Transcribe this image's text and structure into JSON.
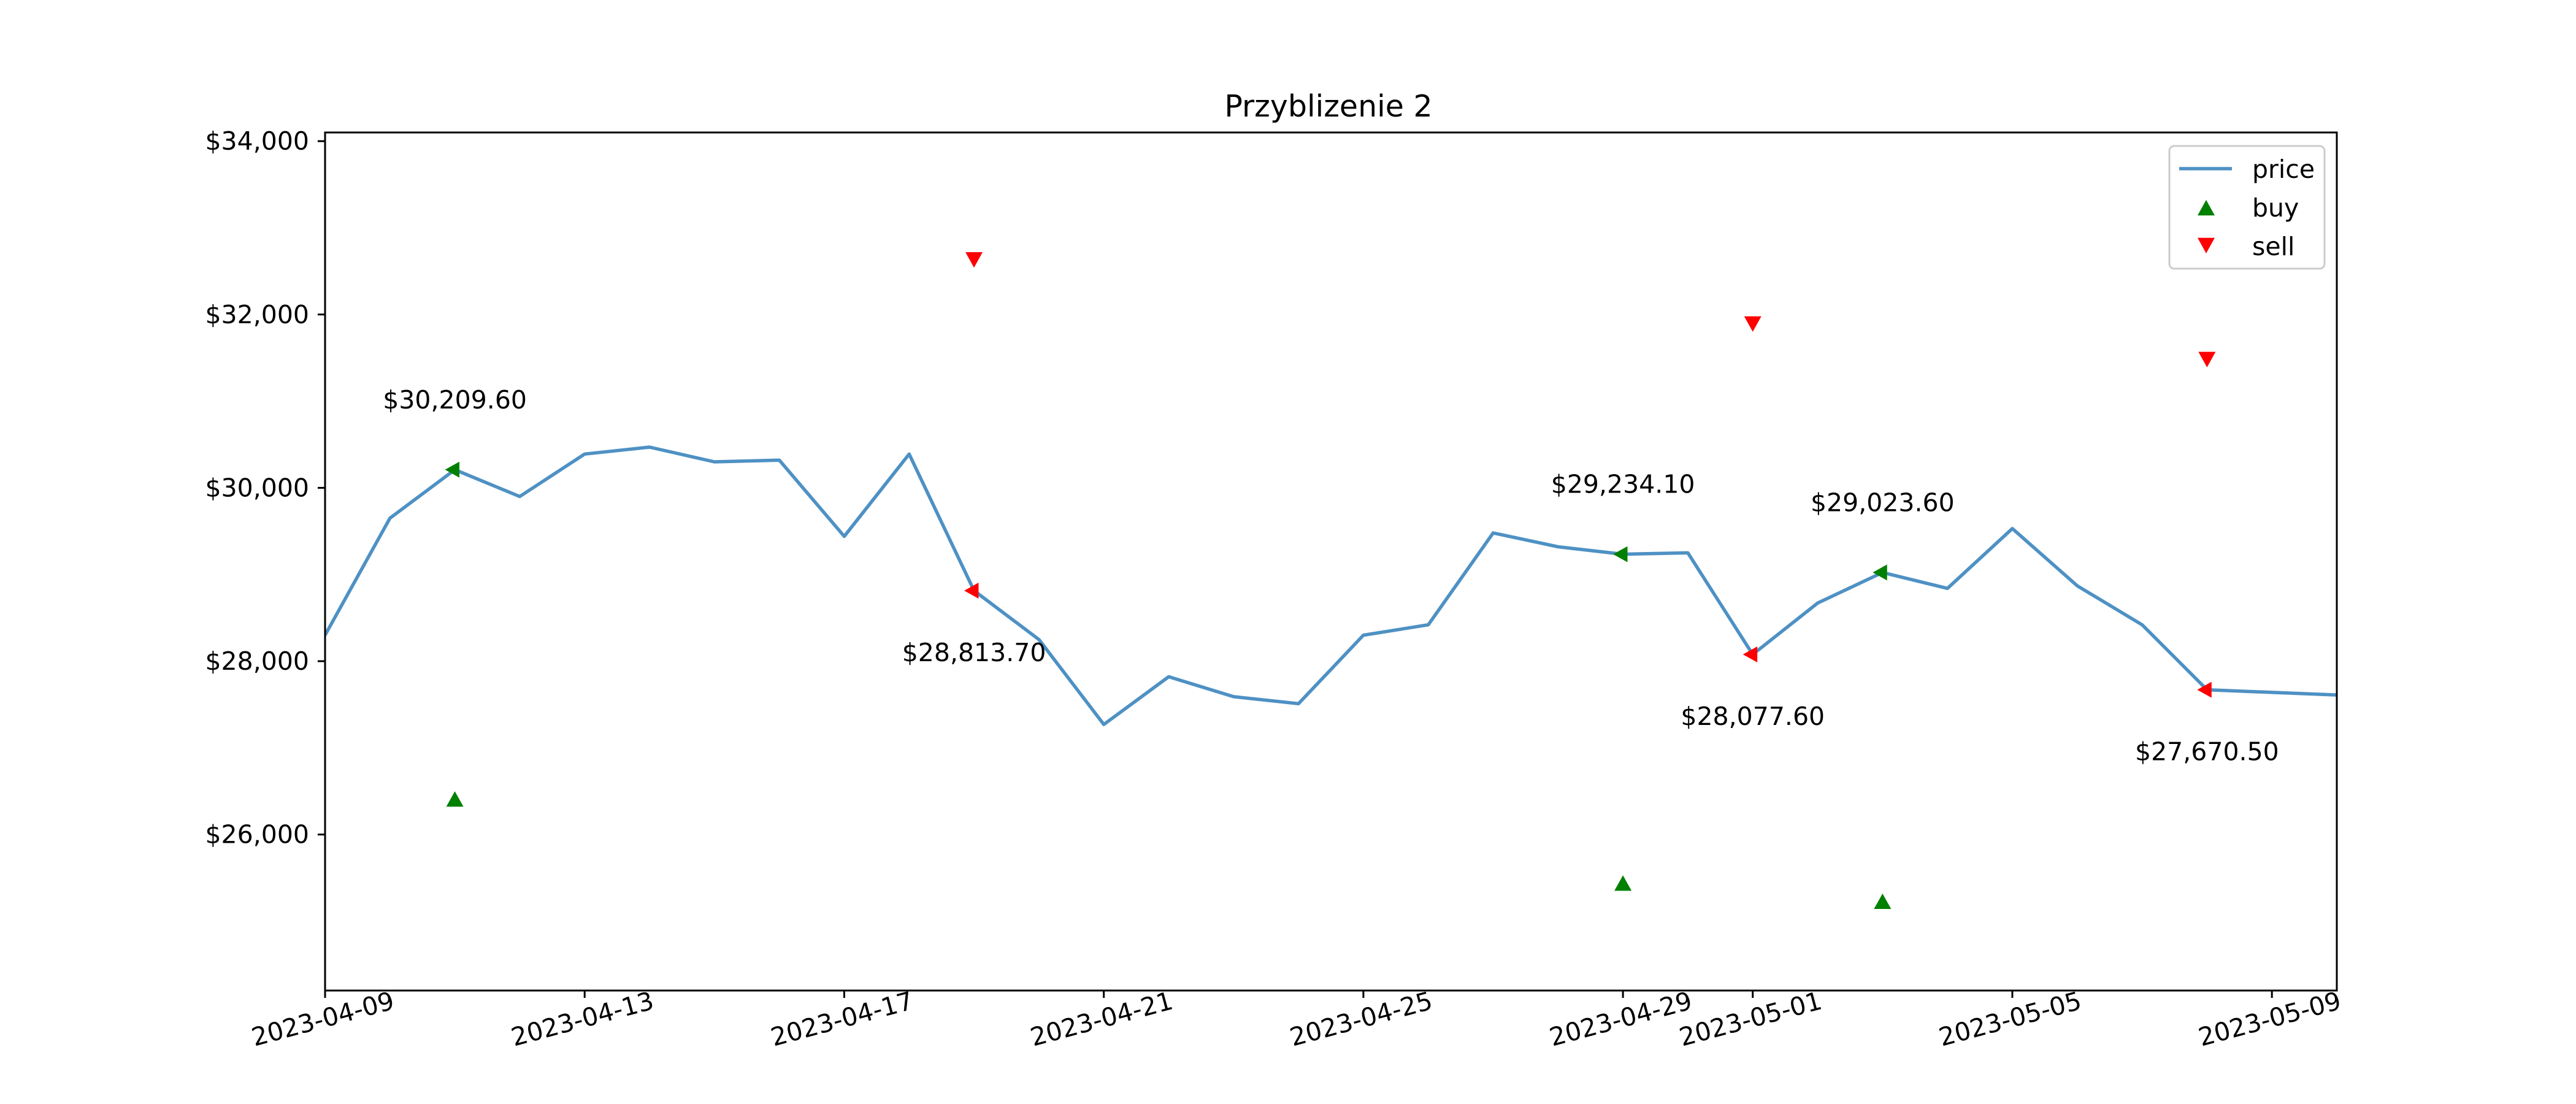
{
  "chart_data": {
    "type": "line",
    "title": "Przyblizenie 2",
    "xlabel": "",
    "ylabel": "",
    "x_range": [
      "2023-04-09",
      "2023-05-10"
    ],
    "ylim": [
      24200,
      34100
    ],
    "grid": false,
    "legend_position": "top-right",
    "x_ticks": [
      "2023-04-09",
      "2023-04-13",
      "2023-04-17",
      "2023-04-21",
      "2023-04-25",
      "2023-04-29",
      "2023-05-01",
      "2023-05-05",
      "2023-05-09"
    ],
    "y_ticks": [
      {
        "value": 26000,
        "label": "$26,000"
      },
      {
        "value": 28000,
        "label": "$28,000"
      },
      {
        "value": 30000,
        "label": "$30,000"
      },
      {
        "value": 32000,
        "label": "$32,000"
      },
      {
        "value": 34000,
        "label": "$34,000"
      }
    ],
    "series": [
      {
        "name": "price",
        "kind": "line",
        "color": "#4e91c4",
        "points": [
          {
            "x": "2023-04-09",
            "y": 28300
          },
          {
            "x": "2023-04-10",
            "y": 29650
          },
          {
            "x": "2023-04-11",
            "y": 30209.6
          },
          {
            "x": "2023-04-12",
            "y": 29900
          },
          {
            "x": "2023-04-13",
            "y": 30390
          },
          {
            "x": "2023-04-14",
            "y": 30470
          },
          {
            "x": "2023-04-15",
            "y": 30300
          },
          {
            "x": "2023-04-16",
            "y": 30320
          },
          {
            "x": "2023-04-17",
            "y": 29440
          },
          {
            "x": "2023-04-18",
            "y": 30390
          },
          {
            "x": "2023-04-19",
            "y": 28813.7
          },
          {
            "x": "2023-04-20",
            "y": 28250
          },
          {
            "x": "2023-04-21",
            "y": 27270
          },
          {
            "x": "2023-04-22",
            "y": 27820
          },
          {
            "x": "2023-04-23",
            "y": 27590
          },
          {
            "x": "2023-04-24",
            "y": 27510
          },
          {
            "x": "2023-04-25",
            "y": 28300
          },
          {
            "x": "2023-04-26",
            "y": 28420
          },
          {
            "x": "2023-04-27",
            "y": 29480
          },
          {
            "x": "2023-04-28",
            "y": 29320
          },
          {
            "x": "2023-04-29",
            "y": 29234.1
          },
          {
            "x": "2023-04-30",
            "y": 29250
          },
          {
            "x": "2023-05-01",
            "y": 28077.6
          },
          {
            "x": "2023-05-02",
            "y": 28670
          },
          {
            "x": "2023-05-03",
            "y": 29023.6
          },
          {
            "x": "2023-05-04",
            "y": 28840
          },
          {
            "x": "2023-05-05",
            "y": 29530
          },
          {
            "x": "2023-05-06",
            "y": 28870
          },
          {
            "x": "2023-05-07",
            "y": 28420
          },
          {
            "x": "2023-05-08",
            "y": 27670.5
          },
          {
            "x": "2023-05-09",
            "y": 27640
          },
          {
            "x": "2023-05-10",
            "y": 27610
          }
        ]
      },
      {
        "name": "buy",
        "kind": "scatter",
        "marker": "triangle-up",
        "color": "#008000",
        "points": [
          {
            "x": "2023-04-11",
            "y": 26400
          },
          {
            "x": "2023-04-29",
            "y": 25430
          },
          {
            "x": "2023-05-03",
            "y": 25220
          }
        ]
      },
      {
        "name": "sell",
        "kind": "scatter",
        "marker": "triangle-down",
        "color": "#ff0000",
        "points": [
          {
            "x": "2023-04-19",
            "y": 32640
          },
          {
            "x": "2023-05-01",
            "y": 31900
          },
          {
            "x": "2023-05-08",
            "y": 31490
          }
        ]
      }
    ],
    "point_markers": [
      {
        "x": "2023-04-11",
        "y": 30209.6,
        "color": "#008000"
      },
      {
        "x": "2023-04-19",
        "y": 28813.7,
        "color": "#ff0000"
      },
      {
        "x": "2023-04-29",
        "y": 29234.1,
        "color": "#008000"
      },
      {
        "x": "2023-05-01",
        "y": 28077.6,
        "color": "#ff0000"
      },
      {
        "x": "2023-05-03",
        "y": 29023.6,
        "color": "#008000"
      },
      {
        "x": "2023-05-08",
        "y": 27670.5,
        "color": "#ff0000"
      }
    ],
    "annotations": [
      {
        "x": "2023-04-11",
        "y": 30209.6,
        "text": "$30,209.60",
        "position": "above"
      },
      {
        "x": "2023-04-19",
        "y": 28813.7,
        "text": "$28,813.70",
        "position": "below"
      },
      {
        "x": "2023-04-29",
        "y": 29234.1,
        "text": "$29,234.10",
        "position": "above"
      },
      {
        "x": "2023-05-01",
        "y": 28077.6,
        "text": "$28,077.60",
        "position": "below"
      },
      {
        "x": "2023-05-03",
        "y": 29023.6,
        "text": "$29,023.60",
        "position": "above"
      },
      {
        "x": "2023-05-08",
        "y": 27670.5,
        "text": "$27,670.50",
        "position": "below"
      }
    ],
    "legend": [
      {
        "label": "price",
        "type": "line",
        "color": "#4e91c4"
      },
      {
        "label": "buy",
        "type": "triangle-up",
        "color": "#008000"
      },
      {
        "label": "sell",
        "type": "triangle-down",
        "color": "#ff0000"
      }
    ]
  }
}
